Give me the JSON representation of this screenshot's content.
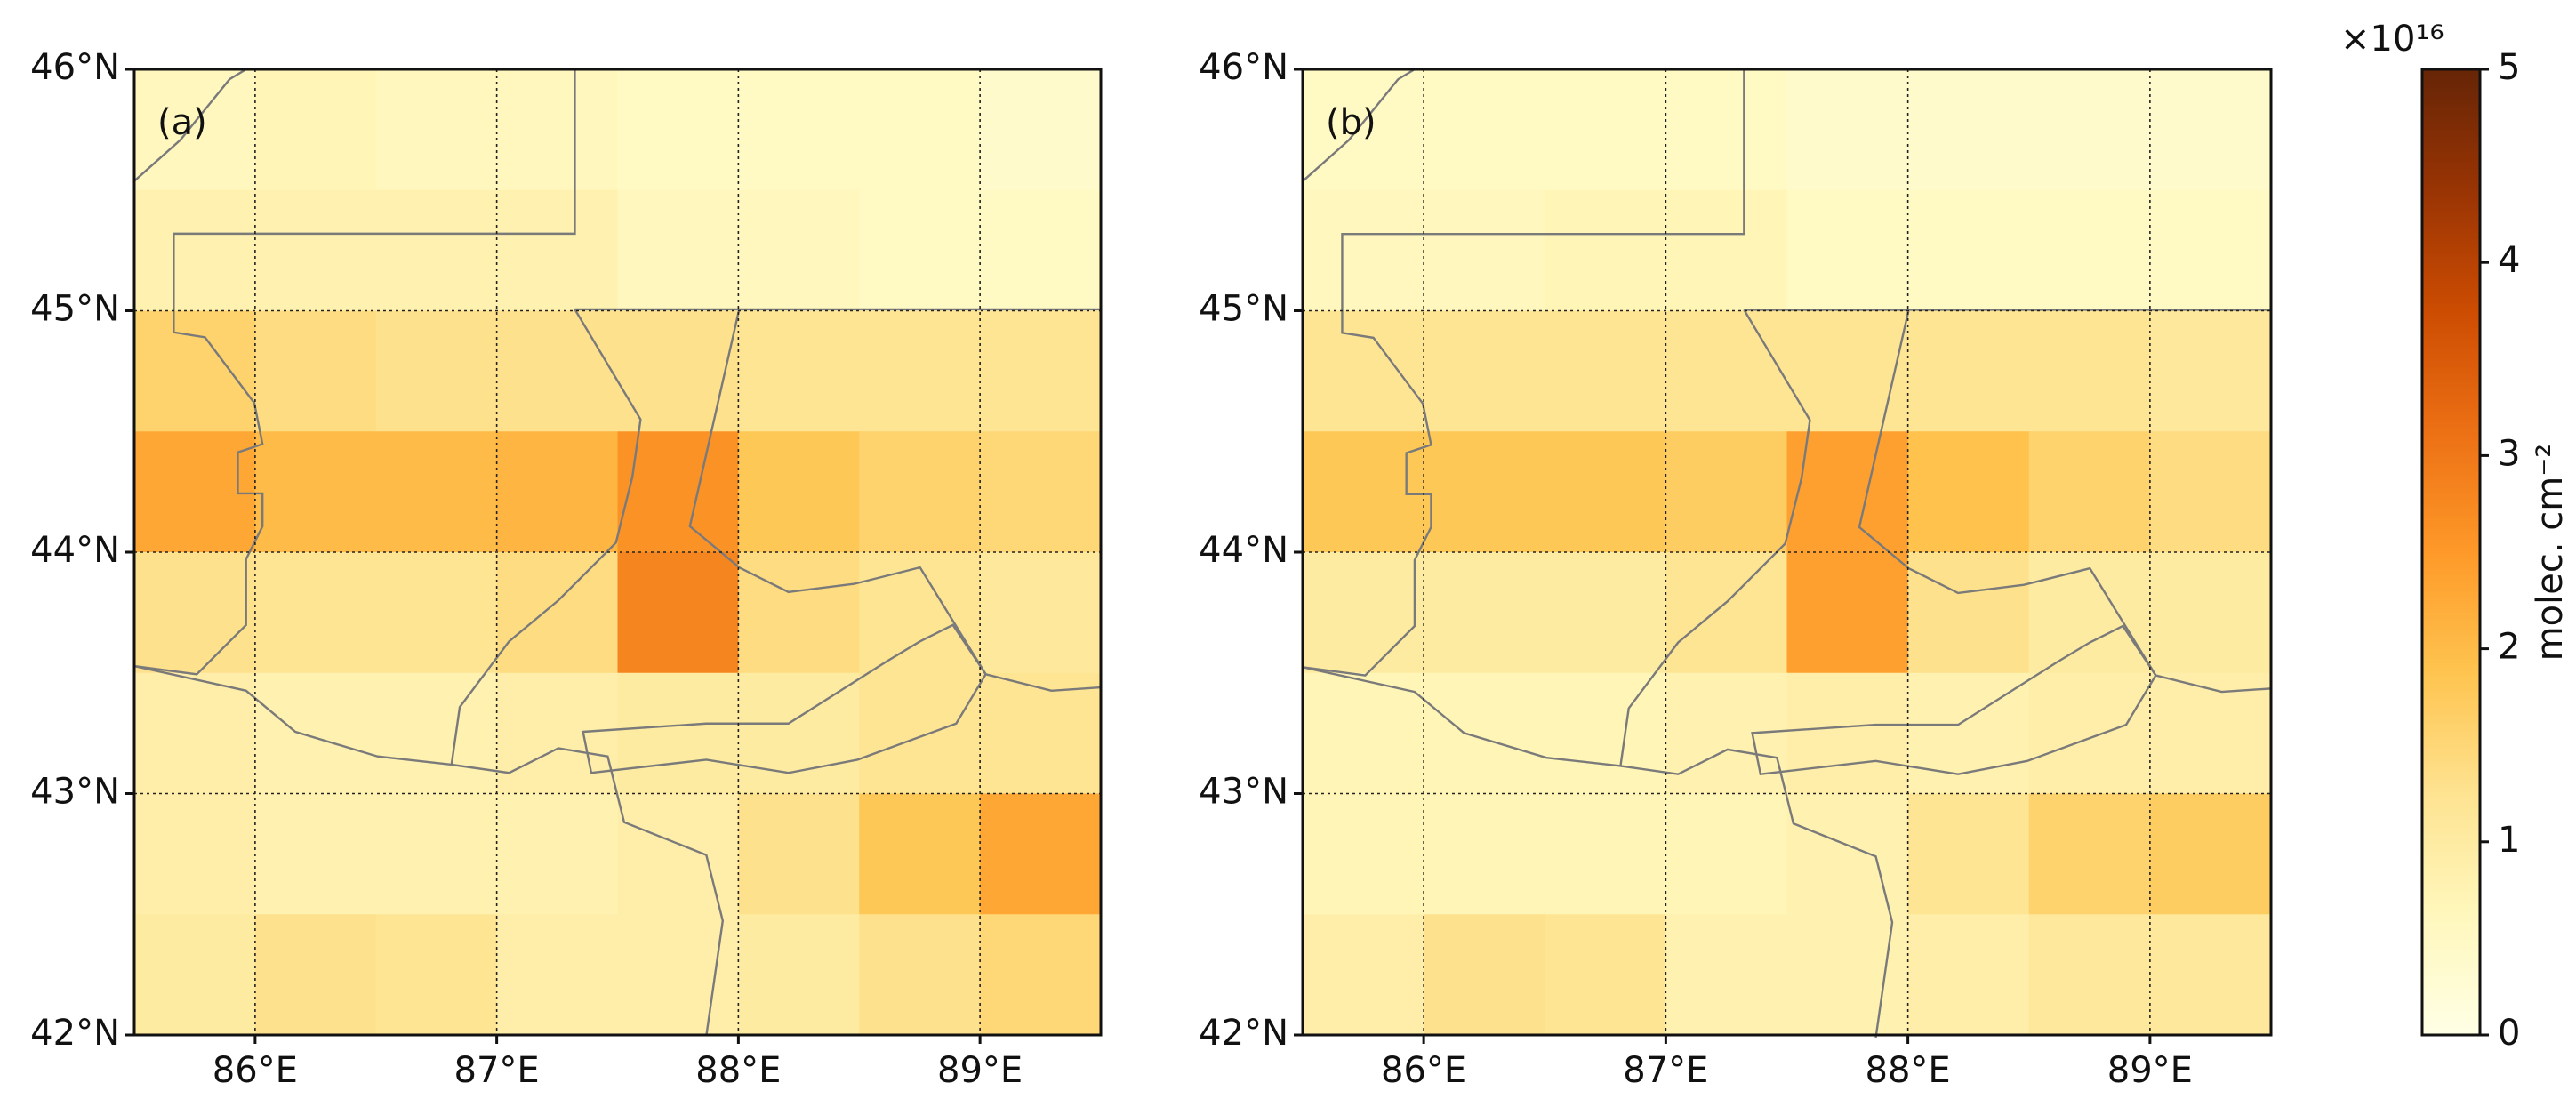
{
  "chart_data": [
    {
      "type": "heatmap",
      "label": "(a)",
      "x": [
        85.75,
        86.25,
        86.75,
        87.25,
        87.75,
        88.25,
        88.75,
        89.25
      ],
      "y": [
        45.75,
        45.25,
        44.75,
        44.25,
        43.75,
        43.25,
        42.75,
        42.25
      ],
      "values": [
        [
          0.6,
          0.7,
          0.6,
          0.6,
          0.5,
          0.5,
          0.5,
          0.4
        ],
        [
          0.8,
          0.8,
          0.8,
          0.8,
          0.6,
          0.6,
          0.5,
          0.5
        ],
        [
          1.6,
          1.4,
          1.3,
          1.3,
          1.3,
          1.2,
          1.2,
          1.2
        ],
        [
          2.3,
          2.0,
          2.0,
          2.1,
          2.6,
          1.8,
          1.6,
          1.5
        ],
        [
          1.3,
          1.2,
          1.2,
          1.4,
          2.8,
          1.4,
          1.2,
          1.1
        ],
        [
          0.9,
          0.8,
          0.8,
          0.9,
          1.0,
          1.0,
          1.2,
          1.2
        ],
        [
          0.9,
          0.8,
          0.8,
          0.8,
          0.9,
          1.3,
          1.8,
          2.3
        ],
        [
          1.0,
          1.3,
          1.2,
          0.9,
          0.9,
          1.0,
          1.3,
          1.5
        ]
      ],
      "xlim": [
        85.5,
        89.5
      ],
      "ylim": [
        42,
        46
      ],
      "xticks": [
        {
          "value": 86,
          "label": "86°E"
        },
        {
          "value": 87,
          "label": "87°E"
        },
        {
          "value": 88,
          "label": "88°E"
        },
        {
          "value": 89,
          "label": "89°E"
        }
      ],
      "yticks": [
        {
          "value": 42,
          "label": "42°N"
        },
        {
          "value": 43,
          "label": "43°N"
        },
        {
          "value": 44,
          "label": "44°N"
        },
        {
          "value": 45,
          "label": "45°N"
        },
        {
          "value": 46,
          "label": "46°N"
        }
      ],
      "grid": true
    },
    {
      "type": "heatmap",
      "label": "(b)",
      "x": [
        85.75,
        86.25,
        86.75,
        87.25,
        87.75,
        88.25,
        88.75,
        89.25
      ],
      "y": [
        45.75,
        45.25,
        44.75,
        44.25,
        43.75,
        43.25,
        42.75,
        42.25
      ],
      "values": [
        [
          0.5,
          0.5,
          0.5,
          0.5,
          0.4,
          0.4,
          0.4,
          0.4
        ],
        [
          0.6,
          0.6,
          0.7,
          0.7,
          0.5,
          0.5,
          0.5,
          0.5
        ],
        [
          1.2,
          1.2,
          1.2,
          1.2,
          1.2,
          1.2,
          1.2,
          1.1
        ],
        [
          1.8,
          1.8,
          1.8,
          1.7,
          2.4,
          1.9,
          1.6,
          1.4
        ],
        [
          1.0,
          1.0,
          1.0,
          1.2,
          2.4,
          1.3,
          1.0,
          1.0
        ],
        [
          0.7,
          0.7,
          0.7,
          0.8,
          0.9,
          0.8,
          0.9,
          0.9
        ],
        [
          0.7,
          0.7,
          0.7,
          0.7,
          0.8,
          1.2,
          1.6,
          1.7
        ],
        [
          0.9,
          1.3,
          1.2,
          0.8,
          0.8,
          0.9,
          1.1,
          1.1
        ]
      ],
      "xlim": [
        85.5,
        89.5
      ],
      "ylim": [
        42,
        46
      ],
      "xticks": [
        {
          "value": 86,
          "label": "86°E"
        },
        {
          "value": 87,
          "label": "87°E"
        },
        {
          "value": 88,
          "label": "88°E"
        },
        {
          "value": 89,
          "label": "89°E"
        }
      ],
      "yticks": [
        {
          "value": 42,
          "label": "42°N"
        },
        {
          "value": 43,
          "label": "43°N"
        },
        {
          "value": 44,
          "label": "44°N"
        },
        {
          "value": 45,
          "label": "45°N"
        },
        {
          "value": 46,
          "label": "46°N"
        }
      ],
      "grid": true
    }
  ],
  "colorbar": {
    "lim": [
      0,
      5
    ],
    "ticks": [
      0,
      1,
      2,
      3,
      4,
      5
    ],
    "label": "molec. cm⁻²",
    "multiplier": "×10¹⁶",
    "colormap": [
      "#ffffe5",
      "#fff7bc",
      "#fee391",
      "#fec44f",
      "#fe9929",
      "#ec7014",
      "#cc4c02",
      "#993404",
      "#662506"
    ]
  }
}
